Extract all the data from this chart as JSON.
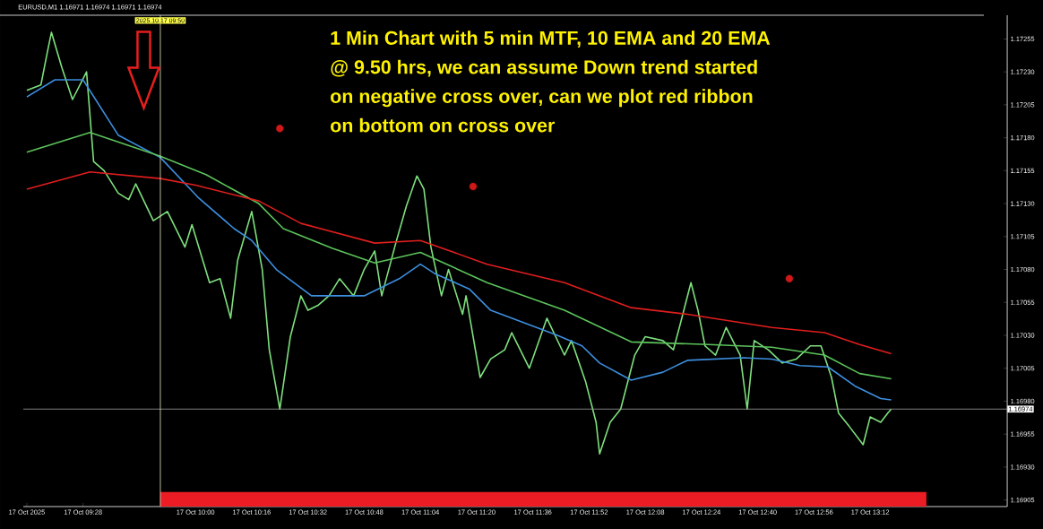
{
  "chart_data": {
    "type": "line",
    "title": "EURUSD,M1  1.16971 1.16974 1.16971 1.16974",
    "annotations": [
      "1 Min Chart with 5 min MTF, 10 EMA and 20 EMA",
      "@ 9.50 hrs, we can assume Down trend started",
      "on negative cross over, can we plot red ribbon",
      "on bottom on cross over"
    ],
    "xlim": [
      "2025-10-17T09:11",
      "2025-10-17T13:51"
    ],
    "ylim": [
      1.169,
      1.17273
    ],
    "xticks": [
      {
        "value": "2025-10-17T09:12",
        "label": "17 Oct 2025"
      },
      {
        "value": "2025-10-17T09:28",
        "label": "17 Oct 09:28"
      },
      {
        "value": "2025-10-17T10:00",
        "label": "17 Oct 10:00"
      },
      {
        "value": "2025-10-17T10:16",
        "label": "17 Oct 10:16"
      },
      {
        "value": "2025-10-17T10:32",
        "label": "17 Oct 10:32"
      },
      {
        "value": "2025-10-17T10:48",
        "label": "17 Oct 10:48"
      },
      {
        "value": "2025-10-17T11:04",
        "label": "17 Oct 11:04"
      },
      {
        "value": "2025-10-17T11:20",
        "label": "17 Oct 11:20"
      },
      {
        "value": "2025-10-17T11:36",
        "label": "17 Oct 11:36"
      },
      {
        "value": "2025-10-17T11:52",
        "label": "17 Oct 11:52"
      },
      {
        "value": "2025-10-17T12:08",
        "label": "17 Oct 12:08"
      },
      {
        "value": "2025-10-17T12:24",
        "label": "17 Oct 12:24"
      },
      {
        "value": "2025-10-17T12:40",
        "label": "17 Oct 12:40"
      },
      {
        "value": "2025-10-17T12:56",
        "label": "17 Oct 12:56"
      },
      {
        "value": "2025-10-17T13:12",
        "label": "17 Oct 13:12"
      }
    ],
    "yticks": [
      1.16905,
      {
        "value": 1.1693,
        "label": "1.16930"
      },
      1.16955,
      {
        "value": 1.1698,
        "label": "1.16980"
      },
      1.17005,
      {
        "value": 1.1703,
        "label": "1.17030"
      },
      1.17055,
      {
        "value": 1.1708,
        "label": "1.17080"
      },
      1.17105,
      {
        "value": 1.1713,
        "label": "1.17130"
      },
      1.17155,
      {
        "value": 1.1718,
        "label": "1.17180"
      },
      1.17205,
      {
        "value": 1.1723,
        "label": "1.17230"
      },
      1.17255
    ],
    "ref_lines": [
      {
        "axis": "y",
        "value": 1.16974,
        "label": "1.16974",
        "color": "#a0a0a0"
      },
      {
        "axis": "x",
        "value": "2025-10-17T09:50",
        "label": "2025.10.17 09:50",
        "color": "#e8e8c8"
      }
    ],
    "series": [
      {
        "color": "#7ee07e",
        "x": [
          "2025-10-17T09:12",
          "2025-10-17T09:16",
          "2025-10-17T09:18",
          "2025-10-17T09:19",
          "2025-10-17T09:22",
          "2025-10-17T09:25",
          "2025-10-17T09:29",
          "2025-10-17T09:31",
          "2025-10-17T09:34",
          "2025-10-17T09:38",
          "2025-10-17T09:41",
          "2025-10-17T09:43",
          "2025-10-17T09:48",
          "2025-10-17T09:52",
          "2025-10-17T09:57",
          "2025-10-17T09:59",
          "2025-10-17T10:04",
          "2025-10-17T10:07",
          "2025-10-17T10:10",
          "2025-10-17T10:12",
          "2025-10-17T10:16",
          "2025-10-17T10:19",
          "2025-10-17T10:21",
          "2025-10-17T10:24",
          "2025-10-17T10:27",
          "2025-10-17T10:30",
          "2025-10-17T10:32",
          "2025-10-17T10:35",
          "2025-10-17T10:38",
          "2025-10-17T10:41",
          "2025-10-17T10:45",
          "2025-10-17T10:48",
          "2025-10-17T10:51",
          "2025-10-17T10:53",
          "2025-10-17T10:57",
          "2025-10-17T11:00",
          "2025-10-17T11:03",
          "2025-10-17T11:05",
          "2025-10-17T11:07",
          "2025-10-17T11:10",
          "2025-10-17T11:12",
          "2025-10-17T11:16",
          "2025-10-17T11:17",
          "2025-10-17T11:21",
          "2025-10-17T11:24",
          "2025-10-17T11:28",
          "2025-10-17T11:30",
          "2025-10-17T11:35",
          "2025-10-17T11:40",
          "2025-10-17T11:45",
          "2025-10-17T11:47",
          "2025-10-17T11:51",
          "2025-10-17T11:54",
          "2025-10-17T11:55",
          "2025-10-17T11:58",
          "2025-10-17T12:01",
          "2025-10-17T12:05",
          "2025-10-17T12:08",
          "2025-10-17T12:13",
          "2025-10-17T12:16",
          "2025-10-17T12:18",
          "2025-10-17T12:21",
          "2025-10-17T12:23",
          "2025-10-17T12:25",
          "2025-10-17T12:28",
          "2025-10-17T12:31",
          "2025-10-17T12:35",
          "2025-10-17T12:37",
          "2025-10-17T12:39",
          "2025-10-17T12:43",
          "2025-10-17T12:47",
          "2025-10-17T12:51",
          "2025-10-17T12:55",
          "2025-10-17T12:58",
          "2025-10-17T13:01",
          "2025-10-17T13:03",
          "2025-10-17T13:06",
          "2025-10-17T13:10",
          "2025-10-17T13:12",
          "2025-10-17T13:15",
          "2025-10-17T13:17",
          "2025-10-17T13:18"
        ],
        "values": [
          1.17216,
          1.1722,
          1.17247,
          1.1726,
          1.17233,
          1.17209,
          1.1723,
          1.17162,
          1.17155,
          1.17138,
          1.17133,
          1.17145,
          1.17117,
          1.17124,
          1.17097,
          1.17114,
          1.1707,
          1.17073,
          1.17043,
          1.17087,
          1.17124,
          1.1708,
          1.17019,
          1.16974,
          1.17029,
          1.1706,
          1.17049,
          1.17053,
          1.1706,
          1.17073,
          1.1706,
          1.1708,
          1.17094,
          1.1706,
          1.171,
          1.17128,
          1.17151,
          1.17141,
          1.17097,
          1.1706,
          1.1708,
          1.17046,
          1.1706,
          1.16998,
          1.17012,
          1.17019,
          1.17032,
          1.17005,
          1.17043,
          1.17015,
          1.17026,
          1.16995,
          1.16964,
          1.1694,
          1.16964,
          1.16974,
          1.17015,
          1.17029,
          1.17026,
          1.17019,
          1.17039,
          1.1707,
          1.17049,
          1.17022,
          1.17015,
          1.17036,
          1.17015,
          1.16974,
          1.17026,
          1.17019,
          1.17009,
          1.17012,
          1.17022,
          1.17022,
          1.16998,
          1.16971,
          1.16961,
          1.16947,
          1.16968,
          1.16964,
          1.16971,
          1.16974
        ]
      },
      {
        "color": "#3d8fe0",
        "x": [
          "2025-10-17T09:12",
          "2025-10-17T09:20",
          "2025-10-17T09:28",
          "2025-10-17T09:38",
          "2025-10-17T09:50",
          "2025-10-17T10:01",
          "2025-10-17T10:11",
          "2025-10-17T10:16",
          "2025-10-17T10:23",
          "2025-10-17T10:33",
          "2025-10-17T10:48",
          "2025-10-17T10:58",
          "2025-10-17T11:04",
          "2025-10-17T11:08",
          "2025-10-17T11:18",
          "2025-10-17T11:24",
          "2025-10-17T11:43",
          "2025-10-17T11:50",
          "2025-10-17T11:55",
          "2025-10-17T12:04",
          "2025-10-17T12:13",
          "2025-10-17T12:20",
          "2025-10-17T12:36",
          "2025-10-17T12:44",
          "2025-10-17T12:52",
          "2025-10-17T13:00",
          "2025-10-17T13:08",
          "2025-10-17T13:15",
          "2025-10-17T13:18"
        ],
        "values": [
          1.17211,
          1.17224,
          1.17224,
          1.17182,
          1.17165,
          1.17134,
          1.17111,
          1.17102,
          1.1708,
          1.1706,
          1.1706,
          1.17073,
          1.17084,
          1.17077,
          1.17065,
          1.17049,
          1.1703,
          1.17022,
          1.17009,
          1.16996,
          1.17002,
          1.17011,
          1.17013,
          1.17012,
          1.17007,
          1.17006,
          1.16991,
          1.16982,
          1.16981
        ]
      },
      {
        "color": "#5cc35c",
        "x": [
          "2025-10-17T09:12",
          "2025-10-17T09:30",
          "2025-10-17T09:50",
          "2025-10-17T10:03",
          "2025-10-17T10:18",
          "2025-10-17T10:25",
          "2025-10-17T10:39",
          "2025-10-17T10:51",
          "2025-10-17T11:04",
          "2025-10-17T11:23",
          "2025-10-17T11:45",
          "2025-10-17T12:04",
          "2025-10-17T12:26",
          "2025-10-17T12:44",
          "2025-10-17T12:59",
          "2025-10-17T13:09",
          "2025-10-17T13:18"
        ],
        "values": [
          1.17169,
          1.17184,
          1.17166,
          1.17152,
          1.1713,
          1.17111,
          1.17096,
          1.17085,
          1.17093,
          1.1707,
          1.17049,
          1.17025,
          1.17023,
          1.17021,
          1.17015,
          1.17001,
          1.16997
        ]
      },
      {
        "color": "#e01e1e",
        "x": [
          "2025-10-17T09:12",
          "2025-10-17T09:30",
          "2025-10-17T09:50",
          "2025-10-17T10:00",
          "2025-10-17T10:18",
          "2025-10-17T10:30",
          "2025-10-17T10:51",
          "2025-10-17T11:04",
          "2025-10-17T11:23",
          "2025-10-17T11:45",
          "2025-10-17T12:04",
          "2025-10-17T12:20",
          "2025-10-17T12:44",
          "2025-10-17T12:59",
          "2025-10-17T13:09",
          "2025-10-17T13:18"
        ],
        "values": [
          1.17141,
          1.17154,
          1.17149,
          1.17144,
          1.17132,
          1.17115,
          1.171,
          1.17102,
          1.17084,
          1.1707,
          1.17051,
          1.17046,
          1.17036,
          1.17032,
          1.17023,
          1.17016
        ]
      },
      {
        "type": "area",
        "color": "#ec1c24",
        "x": [
          "2025-10-17T09:50",
          "2025-10-17T13:28"
        ],
        "values": [
          1.16911,
          1.16911
        ]
      },
      {
        "type": "scatter",
        "marker": "circle",
        "color": "#d01818",
        "x": [
          "2025-10-17T10:24",
          "2025-10-17T11:19",
          "2025-10-17T12:49"
        ],
        "values": [
          1.17187,
          1.17143,
          1.17073
        ]
      }
    ]
  }
}
